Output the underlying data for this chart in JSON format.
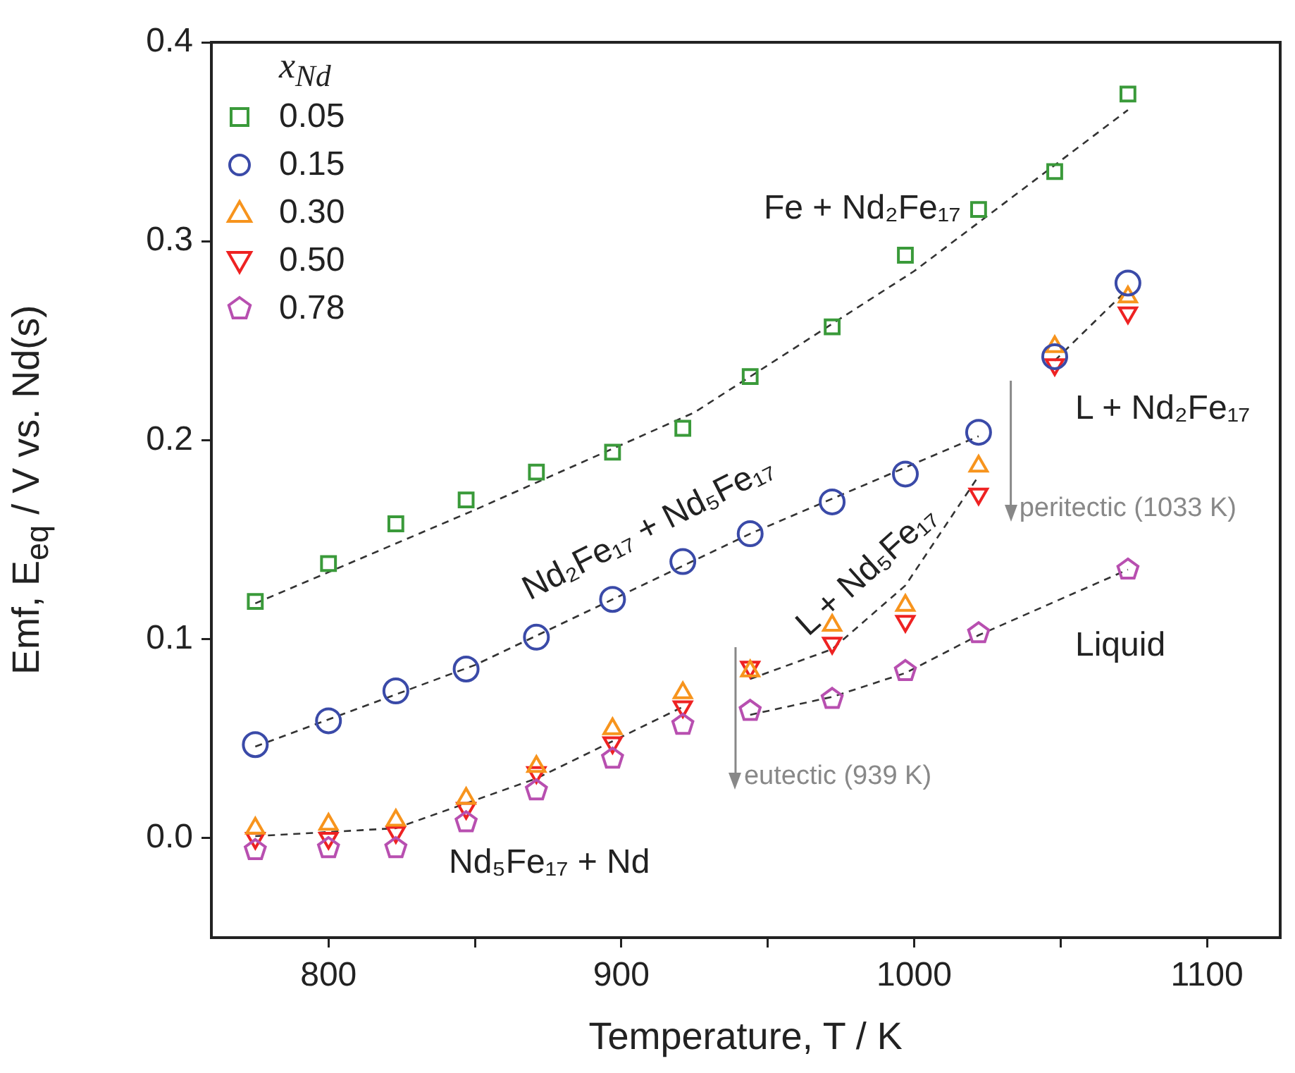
{
  "chart_data": {
    "type": "scatter",
    "xlabel": "Temperature, T / K",
    "ylabel": "Emf, E$_{eq}$ / V vs. Nd(s)",
    "legend_title": "x$_{Nd}$",
    "legend": "top left",
    "grid": false,
    "xlim": [
      760,
      1125
    ],
    "xticks": [
      800,
      {
        "value": 850,
        "label": null
      },
      900,
      {
        "value": 950,
        "label": null
      },
      1000,
      {
        "value": 1050,
        "label": null
      },
      1100
    ],
    "ylim": [
      -0.05,
      0.4
    ],
    "yticks": [
      {
        "value": 0,
        "label": "0.0"
      },
      0.1,
      0.2,
      0.3,
      0.4
    ],
    "x": [
      775,
      800,
      823,
      847,
      871,
      897,
      921,
      944,
      972,
      997,
      1022,
      1048,
      1073
    ],
    "series": [
      {
        "name": "0.05",
        "color": "#3a9a3a",
        "marker": "square",
        "values": [
          0.119,
          0.138,
          0.158,
          0.17,
          0.184,
          0.194,
          0.206,
          0.232,
          0.257,
          0.293,
          0.316,
          0.335,
          0.374
        ]
      },
      {
        "name": "0.15",
        "color": "#3a4aa8",
        "marker": "circle",
        "values": [
          0.047,
          0.059,
          0.074,
          0.085,
          0.101,
          0.12,
          0.139,
          0.153,
          0.169,
          0.183,
          0.204,
          0.242,
          0.279
        ]
      },
      {
        "name": "0.30",
        "color": "#f7941d",
        "marker": "triangle",
        "values": [
          0.005,
          0.007,
          0.009,
          0.02,
          0.036,
          0.055,
          0.073,
          0.084,
          0.107,
          0.117,
          0.187,
          0.247,
          0.272
        ]
      },
      {
        "name": "0.50",
        "color": "#ee2222",
        "marker": "triangle-down",
        "values": [
          0.0,
          0.0,
          0.003,
          0.015,
          0.033,
          0.048,
          0.066,
          0.086,
          0.098,
          0.109,
          0.173,
          0.238,
          0.264
        ]
      },
      {
        "name": "0.78",
        "color": "#b84fb0",
        "values": [
          -0.006,
          -0.005,
          -0.005,
          0.008,
          0.024,
          0.04,
          0.057,
          0.064,
          0.07,
          0.084,
          0.103,
          null,
          0.135
        ]
      },
      {
        "type": "line",
        "color": "#333333",
        "marker": "none",
        "line_style": "dashed",
        "x": [
          775,
          850,
          925,
          1000,
          1073
        ],
        "values": [
          0.118,
          0.165,
          0.214,
          0.285,
          0.366
        ]
      },
      {
        "type": "line",
        "color": "#333333",
        "marker": "none",
        "line_style": "dashed",
        "x": [
          775,
          850,
          944,
          1022
        ],
        "values": [
          0.046,
          0.087,
          0.153,
          0.202
        ]
      },
      {
        "type": "line",
        "color": "#333333",
        "marker": "none",
        "line_style": "dashed",
        "x": [
          775,
          823,
          871,
          921
        ],
        "values": [
          0.001,
          0.005,
          0.03,
          0.066
        ]
      },
      {
        "type": "line",
        "color": "#333333",
        "marker": "none",
        "line_style": "dashed",
        "x": [
          944,
          972,
          997,
          1022
        ],
        "values": [
          0.08,
          0.095,
          0.127,
          0.182
        ]
      },
      {
        "type": "line",
        "color": "#333333",
        "marker": "none",
        "line_style": "dashed",
        "x": [
          1048,
          1073
        ],
        "values": [
          0.24,
          0.276
        ]
      },
      {
        "type": "line",
        "color": "#333333",
        "marker": "none",
        "line_style": "dashed",
        "x": [
          944,
          972,
          997,
          1022,
          1073
        ],
        "values": [
          0.062,
          0.071,
          0.083,
          0.102,
          0.135
        ]
      }
    ],
    "ref_lines": [
      {
        "axis": "x",
        "value": 939,
        "label": "eutectic (939 K)",
        "color": "#888888"
      },
      {
        "axis": "x",
        "value": 1033,
        "label": "peritectic (1033 K)",
        "color": "#888888"
      }
    ],
    "annotations": [
      "Fe + Nd₂Fe₁₇",
      "L + Nd₂Fe₁₇",
      "Nd₂Fe₁₇ + Nd₅Fe₁₇",
      "L + Nd₅Fe₁₇",
      "Liquid",
      "Nd₅Fe₁₇ + Nd"
    ]
  }
}
